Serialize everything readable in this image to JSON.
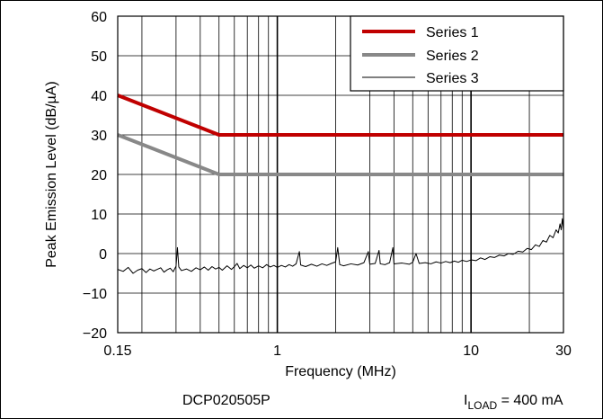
{
  "chart_data": {
    "type": "line",
    "xlabel": "Frequency (MHz)",
    "ylabel": "Peak Emission Level (dB/µA)",
    "x_scale": "log",
    "xlim": [
      0.15,
      30
    ],
    "ylim": [
      -20,
      60
    ],
    "x_ticks": [
      {
        "value": 0.15,
        "label": "0.15"
      },
      {
        "value": 1,
        "label": "1"
      },
      {
        "value": 10,
        "label": "10"
      },
      {
        "value": 30,
        "label": "30"
      }
    ],
    "y_ticks": [
      {
        "value": 60,
        "label": "60"
      },
      {
        "value": 50,
        "label": "50"
      },
      {
        "value": 40,
        "label": "40"
      },
      {
        "value": 30,
        "label": "30"
      },
      {
        "value": 20,
        "label": "20"
      },
      {
        "value": 10,
        "label": "10"
      },
      {
        "value": 0,
        "label": "0"
      },
      {
        "value": -10,
        "label": "−10"
      },
      {
        "value": -20,
        "label": "−20"
      }
    ],
    "grid": true,
    "legend_position": "top-right",
    "series": [
      {
        "name": "Series 1",
        "color": "#c00000",
        "width": 4,
        "points": [
          [
            0.15,
            40
          ],
          [
            0.5,
            30
          ],
          [
            30,
            30
          ]
        ]
      },
      {
        "name": "Series 2",
        "color": "#888888",
        "width": 4,
        "points": [
          [
            0.15,
            30
          ],
          [
            0.5,
            20
          ],
          [
            30,
            20
          ]
        ]
      },
      {
        "name": "Series 3",
        "color": "#000000",
        "width": 1,
        "points": [
          [
            0.15,
            -4.0
          ],
          [
            0.16,
            -4.5
          ],
          [
            0.17,
            -3.5
          ],
          [
            0.18,
            -5.0
          ],
          [
            0.19,
            -4.2
          ],
          [
            0.2,
            -3.8
          ],
          [
            0.21,
            -4.8
          ],
          [
            0.22,
            -3.9
          ],
          [
            0.23,
            -4.4
          ],
          [
            0.24,
            -4.0
          ],
          [
            0.25,
            -3.6
          ],
          [
            0.26,
            -4.7
          ],
          [
            0.27,
            -4.1
          ],
          [
            0.28,
            -3.7
          ],
          [
            0.29,
            -4.6
          ],
          [
            0.3,
            -3.2
          ],
          [
            0.305,
            1.5
          ],
          [
            0.31,
            -3.4
          ],
          [
            0.32,
            -4.3
          ],
          [
            0.34,
            -3.9
          ],
          [
            0.36,
            -4.5
          ],
          [
            0.38,
            -3.6
          ],
          [
            0.4,
            -4.1
          ],
          [
            0.42,
            -3.4
          ],
          [
            0.44,
            -4.2
          ],
          [
            0.46,
            -3.3
          ],
          [
            0.48,
            -3.9
          ],
          [
            0.5,
            -3.5
          ],
          [
            0.52,
            -4.2
          ],
          [
            0.55,
            -3.1
          ],
          [
            0.58,
            -4.0
          ],
          [
            0.6,
            -3.3
          ],
          [
            0.62,
            -2.5
          ],
          [
            0.64,
            -3.8
          ],
          [
            0.67,
            -3.0
          ],
          [
            0.7,
            -3.6
          ],
          [
            0.73,
            -2.9
          ],
          [
            0.76,
            -3.7
          ],
          [
            0.8,
            -3.1
          ],
          [
            0.84,
            -3.6
          ],
          [
            0.88,
            -2.8
          ],
          [
            0.92,
            -3.4
          ],
          [
            0.96,
            -3.0
          ],
          [
            1.0,
            -3.5
          ],
          [
            1.05,
            -3.0
          ],
          [
            1.1,
            -3.4
          ],
          [
            1.15,
            -2.8
          ],
          [
            1.2,
            -3.2
          ],
          [
            1.25,
            -2.6
          ],
          [
            1.3,
            0.5
          ],
          [
            1.32,
            -2.9
          ],
          [
            1.4,
            -3.3
          ],
          [
            1.5,
            -2.7
          ],
          [
            1.6,
            -3.2
          ],
          [
            1.7,
            -2.6
          ],
          [
            1.8,
            -3.0
          ],
          [
            1.9,
            -2.5
          ],
          [
            2.0,
            -2.1
          ],
          [
            2.05,
            1.5
          ],
          [
            2.1,
            -2.8
          ],
          [
            2.2,
            -3.1
          ],
          [
            2.4,
            -2.6
          ],
          [
            2.6,
            -2.9
          ],
          [
            2.8,
            -2.3
          ],
          [
            2.95,
            0.5
          ],
          [
            3.0,
            -2.7
          ],
          [
            3.2,
            -2.5
          ],
          [
            3.35,
            0.8
          ],
          [
            3.4,
            -2.6
          ],
          [
            3.6,
            -2.8
          ],
          [
            3.8,
            -2.3
          ],
          [
            3.95,
            1.5
          ],
          [
            4.0,
            -2.6
          ],
          [
            4.4,
            -2.4
          ],
          [
            4.8,
            -2.7
          ],
          [
            5.0,
            -2.2
          ],
          [
            5.2,
            0.0
          ],
          [
            5.4,
            -2.5
          ],
          [
            5.8,
            -2.3
          ],
          [
            6.2,
            -2.6
          ],
          [
            6.6,
            -2.1
          ],
          [
            7.0,
            -2.4
          ],
          [
            7.4,
            -2.0
          ],
          [
            7.8,
            -2.3
          ],
          [
            8.2,
            -1.9
          ],
          [
            8.6,
            -2.2
          ],
          [
            9.0,
            -1.7
          ],
          [
            9.5,
            -2.0
          ],
          [
            10.0,
            -1.6
          ],
          [
            10.6,
            -1.8
          ],
          [
            11.2,
            -1.1
          ],
          [
            11.8,
            -1.5
          ],
          [
            12.5,
            -0.8
          ],
          [
            13.2,
            -1.0
          ],
          [
            14.0,
            -0.4
          ],
          [
            14.8,
            -0.6
          ],
          [
            15.6,
            0.0
          ],
          [
            16.5,
            -0.2
          ],
          [
            17.5,
            0.6
          ],
          [
            18.5,
            0.4
          ],
          [
            19.5,
            1.3
          ],
          [
            20.5,
            1.0
          ],
          [
            21.5,
            2.2
          ],
          [
            22.5,
            1.8
          ],
          [
            23.5,
            3.3
          ],
          [
            24.5,
            2.9
          ],
          [
            25.5,
            4.6
          ],
          [
            26.5,
            4.0
          ],
          [
            27.5,
            6.0
          ],
          [
            28.2,
            5.2
          ],
          [
            28.8,
            7.5
          ],
          [
            29.2,
            6.0
          ],
          [
            29.6,
            8.8
          ],
          [
            30.0,
            6.0
          ]
        ]
      }
    ],
    "footer": {
      "left": "DCP020505P",
      "right_main": "I",
      "right_sub": "LOAD",
      "right_rest": " = 400 mA"
    }
  }
}
